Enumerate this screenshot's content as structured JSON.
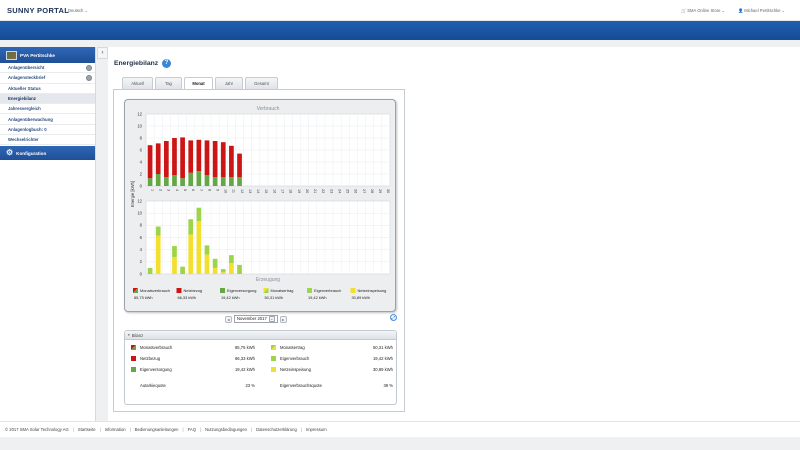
{
  "header": {
    "logo": "SUNNY PORTAL",
    "language": "Deutsch ⌄",
    "store": "SMA Online Store ⌄",
    "user": "Michael Pertitschke ⌄"
  },
  "sidebar": {
    "plant_name": "PVA Pertitschke",
    "items": [
      {
        "label": "Anlagenübersicht"
      },
      {
        "label": "Anlagensteckbrief"
      },
      {
        "label": "Aktueller Status"
      },
      {
        "label": "Energiebilanz"
      },
      {
        "label": "Jahresvergleich"
      },
      {
        "label": "Anlagenüberwachung"
      },
      {
        "label": "Anlagenlogbuch: 0"
      },
      {
        "label": "Wechselrichter"
      }
    ],
    "config_label": "Konfiguration"
  },
  "page": {
    "title": "Energiebilanz",
    "help": "?",
    "collapse": "‹",
    "tabs": [
      {
        "label": "Aktuell"
      },
      {
        "label": "Tag"
      },
      {
        "label": "Monat"
      },
      {
        "label": "Jahr"
      },
      {
        "label": "Gesamt"
      }
    ]
  },
  "date_nav": {
    "prev": "◂",
    "value": "November 2017",
    "dropdown": "⌄",
    "next": "▸"
  },
  "chart_data": {
    "type": "bar",
    "top_title": "Verbrauch",
    "bottom_title": "Erzeugung",
    "ylabel": "Energie [kWh]",
    "ylim": [
      0,
      12
    ],
    "yticks": [
      0,
      2,
      4,
      6,
      8,
      10,
      12
    ],
    "categories": [
      "1",
      "2",
      "3",
      "4",
      "5",
      "6",
      "7",
      "8",
      "9",
      "10",
      "11",
      "12",
      "13",
      "14",
      "15",
      "16",
      "17",
      "18",
      "19",
      "20",
      "21",
      "22",
      "23",
      "24",
      "25",
      "26",
      "27",
      "28",
      "29",
      "30"
    ],
    "consumption_series": [
      {
        "name": "Netzbezug",
        "color": "#cc1515",
        "values": [
          5.5,
          5.1,
          6.0,
          6.2,
          6.8,
          5.4,
          5.2,
          5.8,
          6.0,
          5.8,
          5.2,
          3.9,
          0,
          0,
          0,
          0,
          0,
          0,
          0,
          0,
          0,
          0,
          0,
          0,
          0,
          0,
          0,
          0,
          0,
          0
        ]
      },
      {
        "name": "Eigenverbrauch",
        "color": "#63a844",
        "values": [
          1.3,
          2.0,
          1.5,
          1.8,
          1.3,
          2.2,
          2.5,
          1.8,
          1.5,
          1.5,
          1.5,
          1.5,
          0,
          0,
          0,
          0,
          0,
          0,
          0,
          0,
          0,
          0,
          0,
          0,
          0,
          0,
          0,
          0,
          0,
          0
        ]
      }
    ],
    "generation_series": [
      {
        "name": "Eigenverbrauch",
        "color": "#9ed34a",
        "values": [
          1.0,
          1.5,
          0.0,
          1.8,
          1.2,
          2.5,
          2.2,
          1.5,
          1.5,
          0.5,
          1.3,
          1.5,
          0,
          0,
          0,
          0,
          0,
          0,
          0,
          0,
          0,
          0,
          0,
          0,
          0,
          0,
          0,
          0,
          0,
          0
        ]
      },
      {
        "name": "Netzeinspeisung",
        "color": "#f2df2e",
        "values": [
          0.0,
          6.3,
          0.0,
          2.8,
          0.0,
          6.5,
          8.7,
          3.2,
          1.0,
          0.3,
          1.8,
          0.0,
          0,
          0,
          0,
          0,
          0,
          0,
          0,
          0,
          0,
          0,
          0,
          0,
          0,
          0,
          0,
          0,
          0,
          0
        ]
      }
    ],
    "legend": [
      {
        "name": "Monatsverbrauch",
        "value": "85,75 kWh",
        "color": "#cc1515",
        "color2": "#63a844"
      },
      {
        "name": "Netzbezug",
        "value": "66,33 kWh",
        "color": "#cc1515"
      },
      {
        "name": "Eigenversorgung",
        "value": "19,42 kWh",
        "color": "#63a844"
      },
      {
        "name": "Monatsertrag",
        "value": "50,31 kWh",
        "color": "#f2df2e",
        "color2": "#9ed34a"
      },
      {
        "name": "Eigenverbrauch",
        "value": "19,42 kWh",
        "color": "#9ed34a"
      },
      {
        "name": "Netzeinspeisung",
        "value": "30,89 kWh",
        "color": "#f2df2e"
      }
    ],
    "grid": true
  },
  "bilanz": {
    "title": "Bilanz",
    "toggle": "▾",
    "left": [
      {
        "label": "Monatsverbrauch",
        "value": "85,75 kWh",
        "color": "#cc1515",
        "color2": "#63a844"
      },
      {
        "label": "Netzbezug",
        "value": "66,33 kWh",
        "color": "#cc1515"
      },
      {
        "label": "Eigenversorgung",
        "value": "19,42 kWh",
        "color": "#63a844"
      }
    ],
    "right": [
      {
        "label": "Monatsertrag",
        "value": "50,31 kWh",
        "color": "#f2df2e",
        "color2": "#9ed34a"
      },
      {
        "label": "Eigenverbrauch",
        "value": "19,42 kWh",
        "color": "#9ed34a"
      },
      {
        "label": "Netzeinspeisung",
        "value": "30,89 kWh",
        "color": "#f2df2e"
      }
    ],
    "autarkie_label": "Autarkiequote",
    "autarkie_value": "23 %",
    "eigenverbrauchsquote_label": "Eigenverbrauchsquote",
    "eigenverbrauchsquote_value": "39 %"
  },
  "footer": {
    "items": [
      "© 2017 SMA Solar Technology AG",
      "Startseite",
      "Information",
      "Bedienungsanleitungen",
      "FAQ",
      "Nutzungsbedingungen",
      "Datenschutzerklärung",
      "Impressum"
    ]
  }
}
